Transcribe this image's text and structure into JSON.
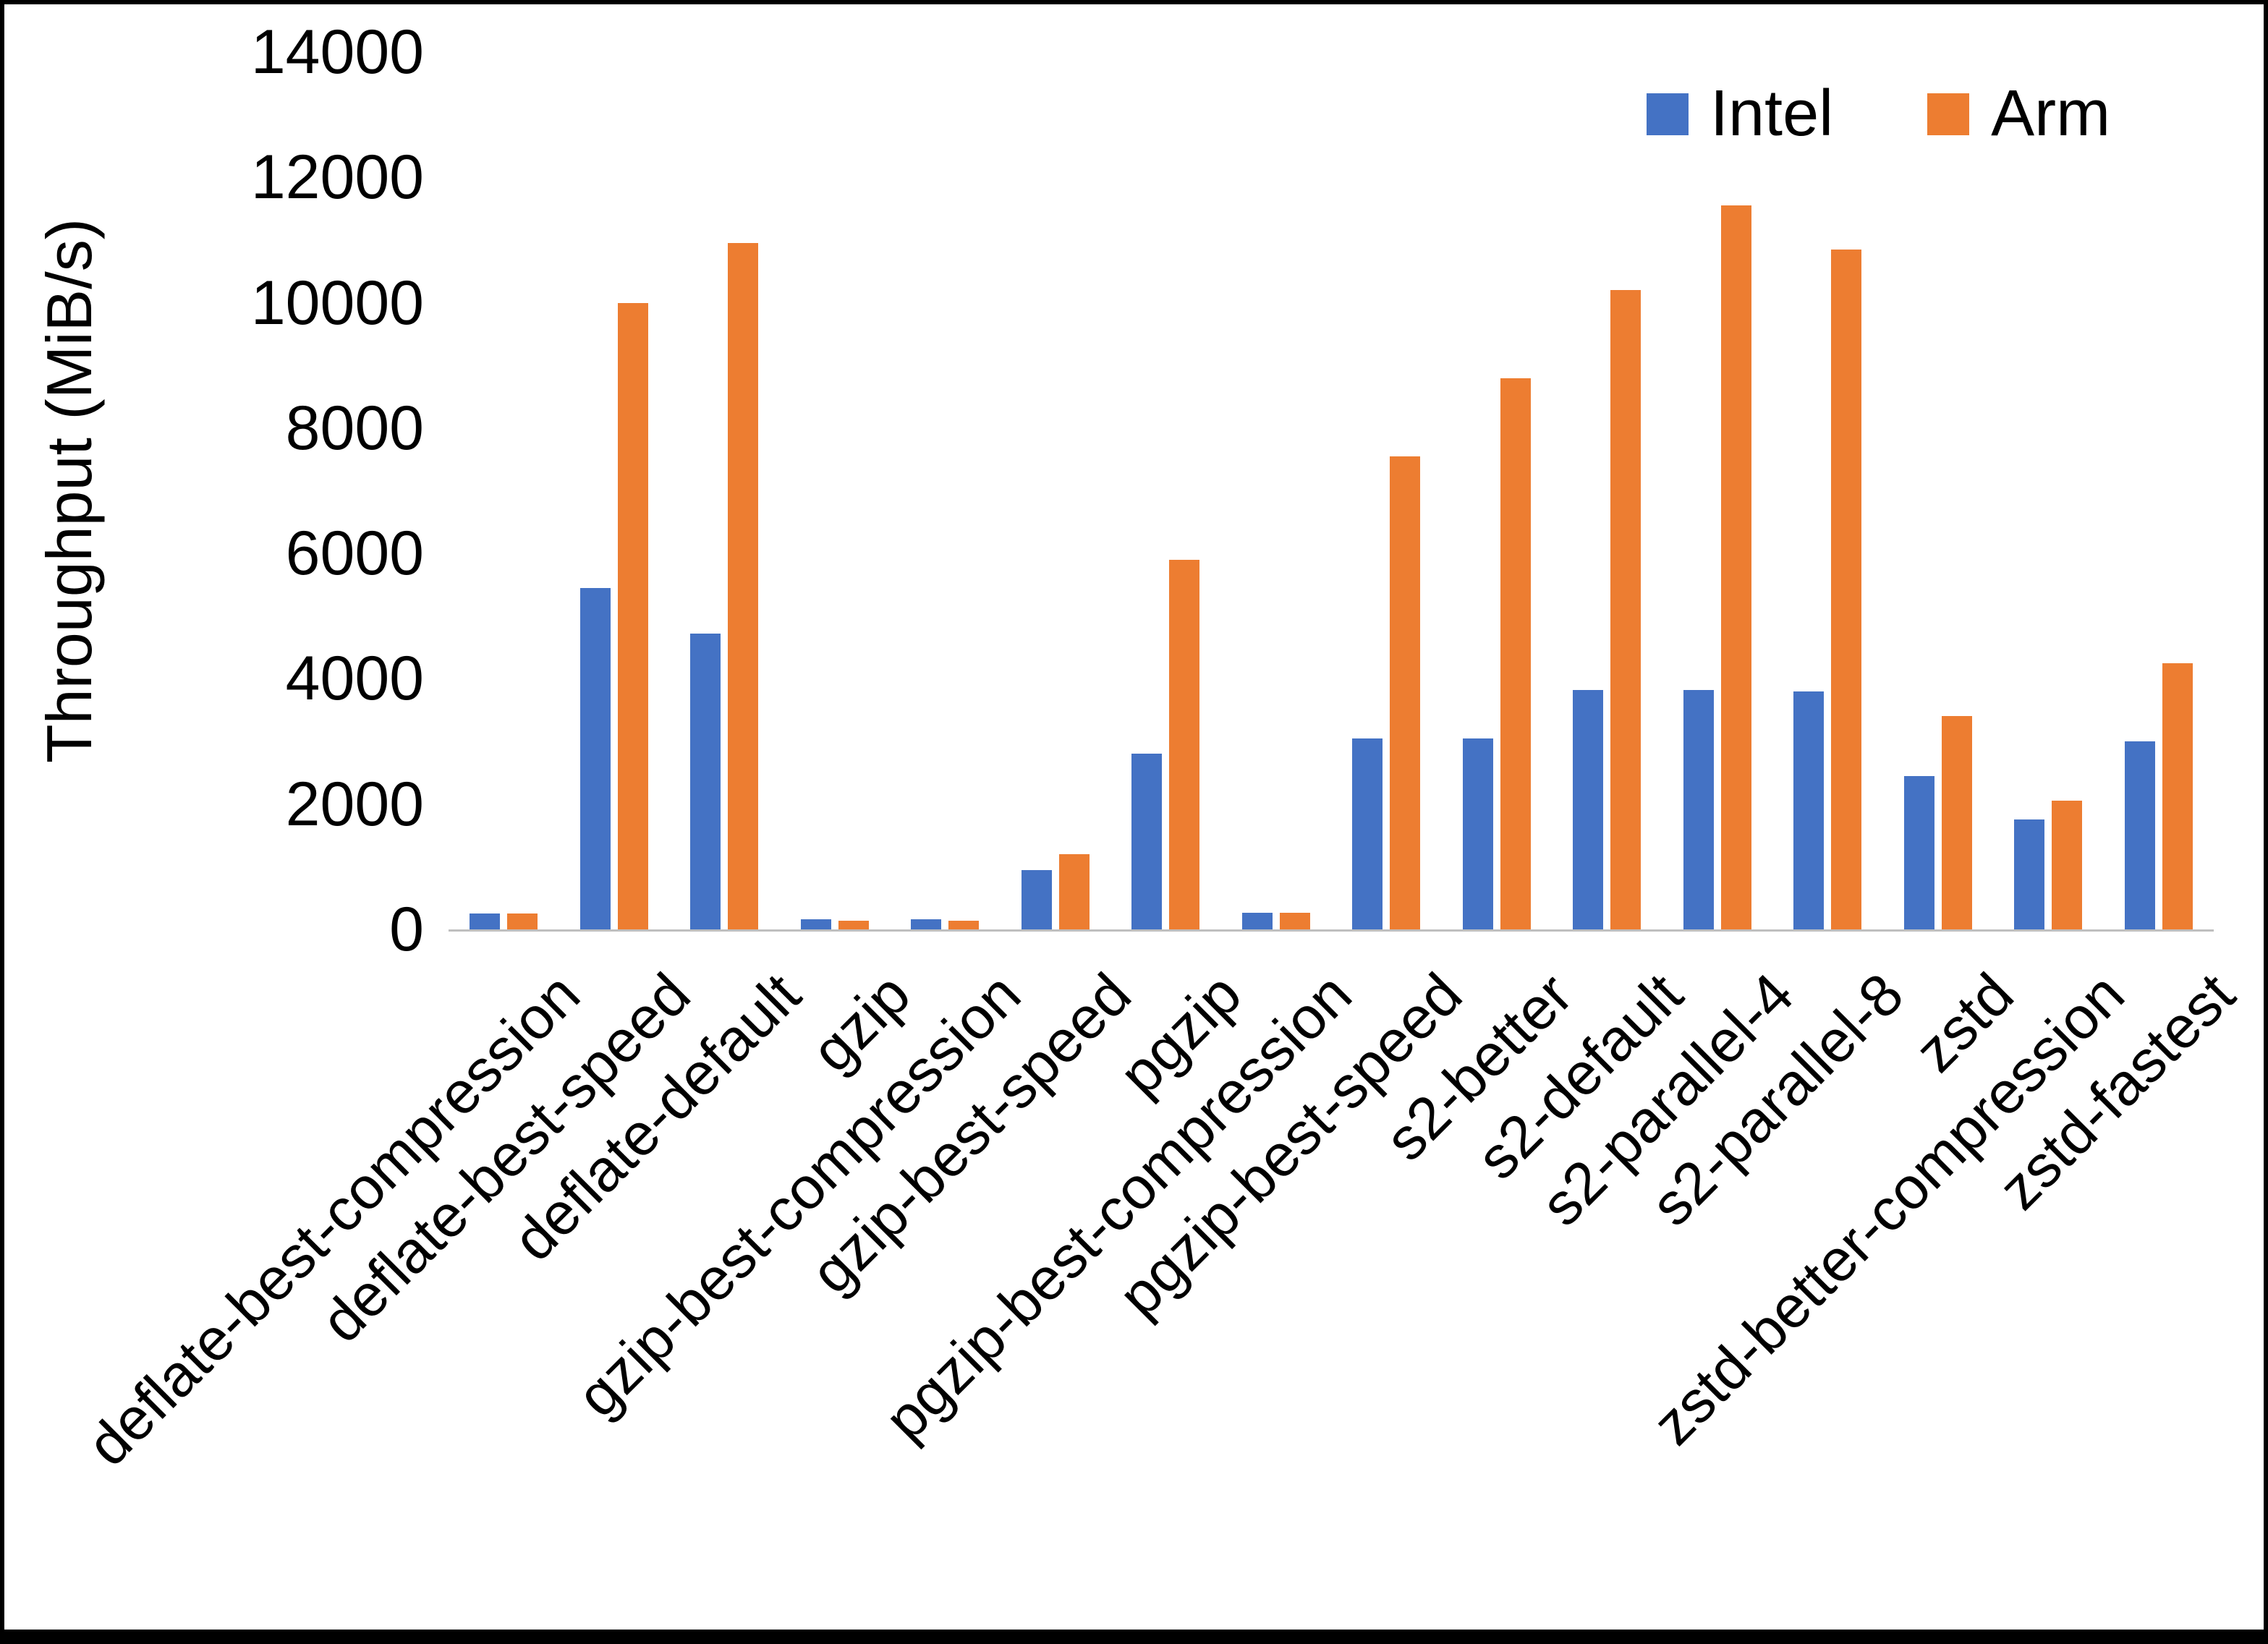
{
  "chart_data": {
    "type": "bar",
    "title": "",
    "ylabel": "Throughput (MiB/s)",
    "xlabel": "",
    "ylim": [
      0,
      14000
    ],
    "ytick_interval": 2000,
    "yticks": [
      0,
      2000,
      4000,
      6000,
      8000,
      10000,
      12000,
      14000
    ],
    "grid": false,
    "legend_position": "top-right",
    "categories": [
      "deflate-best-compression",
      "deflate-best-speed",
      "deflate-default",
      "gzip",
      "gzip-best-compression",
      "gzip-best-speed",
      "pgzip",
      "pgzip-best-compression",
      "pgzip-best-speed",
      "s2-better",
      "s2-default",
      "s2-parallel-4",
      "s2-parallel-8",
      "zstd",
      "zstd-better-compression",
      "zstd-fastest"
    ],
    "series": [
      {
        "name": "Intel",
        "color": "#4472C4",
        "values": [
          250,
          5450,
          4720,
          160,
          160,
          950,
          2800,
          260,
          3050,
          3050,
          3820,
          3820,
          3800,
          2450,
          1760,
          3000
        ]
      },
      {
        "name": "Arm",
        "color": "#ED7D31",
        "values": [
          250,
          10000,
          10950,
          140,
          140,
          1200,
          5900,
          260,
          7550,
          8800,
          10200,
          11550,
          10850,
          3400,
          2060,
          4250
        ]
      }
    ]
  }
}
